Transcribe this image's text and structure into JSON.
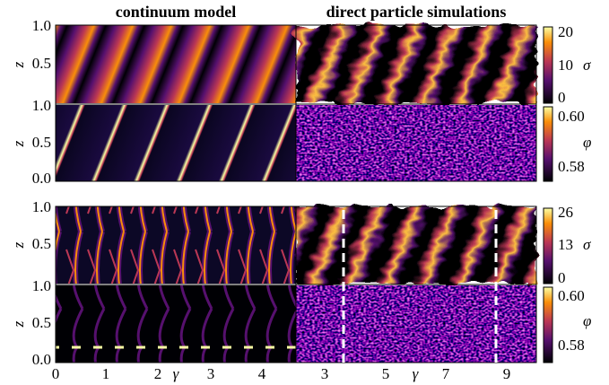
{
  "titles": {
    "left": "continuum model",
    "right": "direct particle simulations"
  },
  "y_axis_label": "z",
  "panels": [
    {
      "yticks": [
        "1.0",
        "0.5"
      ]
    },
    {
      "yticks": [
        "1.0",
        "0.5",
        "0.0"
      ]
    },
    {
      "yticks": [
        "1.0",
        "0.5"
      ]
    },
    {
      "yticks": [
        "1.0",
        "0.5",
        "0.0"
      ]
    }
  ],
  "x_axis": {
    "left": {
      "ticks": [
        "0",
        "1",
        "2",
        "3",
        "4"
      ],
      "label": "γ"
    },
    "right": {
      "ticks": [
        "3",
        "5",
        "7",
        "9"
      ],
      "label": "γ"
    }
  },
  "colorbars": [
    {
      "label": "σ",
      "ticks": [
        "20",
        "10",
        "0"
      ]
    },
    {
      "label": "φ",
      "ticks": [
        "0.60",
        "0.58"
      ]
    },
    {
      "label": "σ",
      "ticks": [
        "26",
        "13",
        "0"
      ]
    },
    {
      "label": "φ",
      "ticks": [
        "0.60",
        "0.58"
      ]
    }
  ]
}
